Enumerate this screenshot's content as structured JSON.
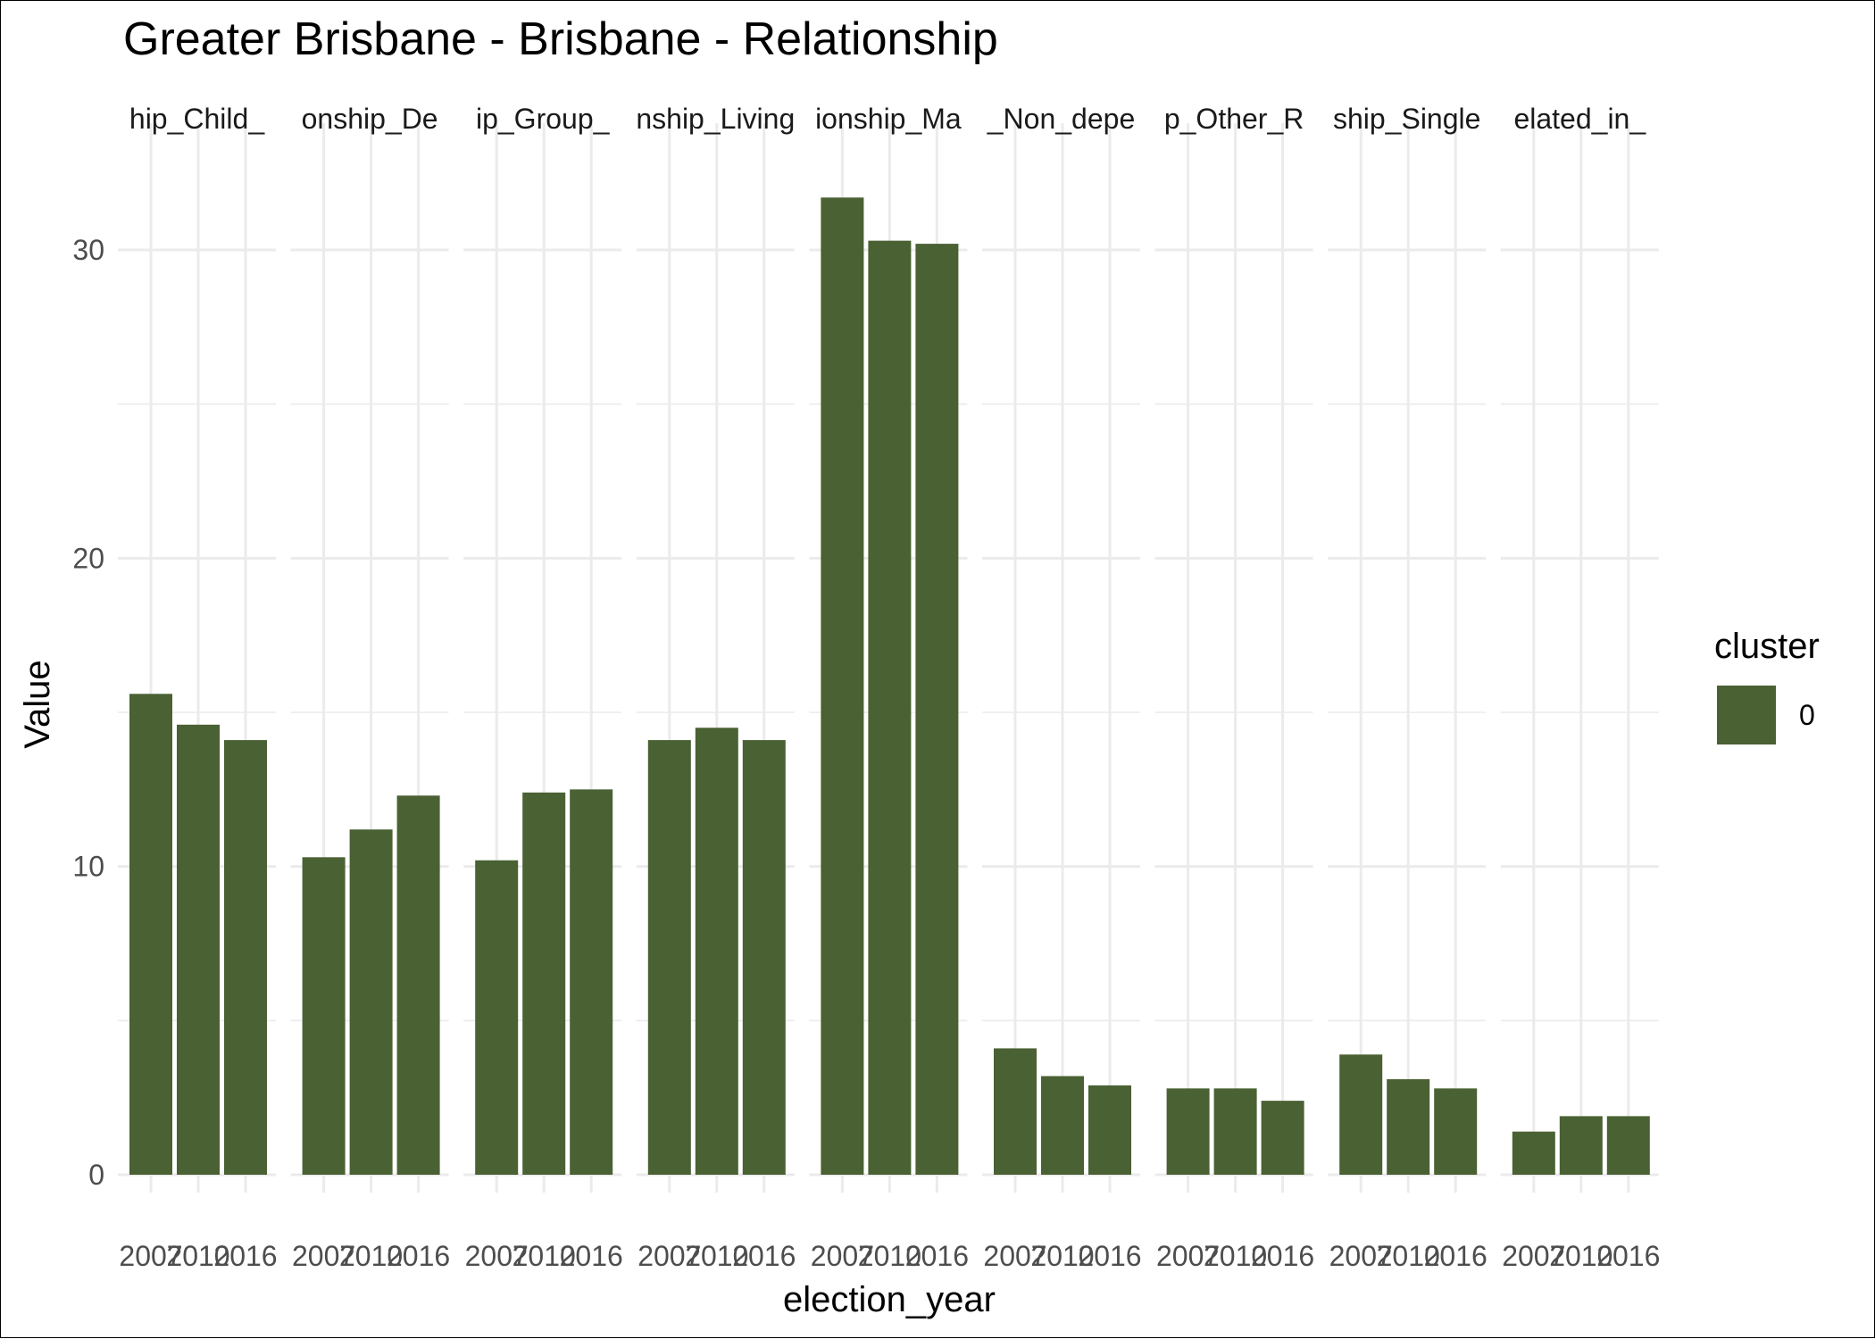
{
  "chart_data": {
    "type": "bar",
    "title": "Greater Brisbane - Brisbane - Relationship",
    "xlabel": "election_year",
    "ylabel": "Value",
    "ylim": [
      0,
      32
    ],
    "y_ticks": [
      0,
      10,
      20,
      30
    ],
    "grid": true,
    "categories": [
      "2007",
      "2010",
      "2016"
    ],
    "facet_labels": [
      "hip_Child_",
      "onship_De",
      "ip_Group_",
      "nship_Living",
      "ionship_Ma",
      "_Non_depe",
      "p_Other_R",
      "ship_Single",
      "elated_in_"
    ],
    "facets": [
      {
        "label": "hip_Child_",
        "values": [
          15.6,
          14.6,
          14.1
        ]
      },
      {
        "label": "onship_De",
        "values": [
          10.3,
          11.2,
          12.3
        ]
      },
      {
        "label": "ip_Group_",
        "values": [
          10.2,
          12.4,
          12.5
        ]
      },
      {
        "label": "nship_Living",
        "values": [
          14.1,
          14.5,
          14.1
        ]
      },
      {
        "label": "ionship_Ma",
        "values": [
          31.7,
          30.3,
          30.2
        ]
      },
      {
        "label": "_Non_depe",
        "values": [
          4.1,
          3.2,
          2.9
        ]
      },
      {
        "label": "p_Other_R",
        "values": [
          2.8,
          2.8,
          2.4
        ]
      },
      {
        "label": "ship_Single",
        "values": [
          3.9,
          3.1,
          2.8
        ]
      },
      {
        "label": "elated_in_",
        "values": [
          1.4,
          1.9,
          1.9
        ]
      }
    ],
    "legend": {
      "title": "cluster",
      "position": "right",
      "entries": [
        {
          "label": "0",
          "color": "#4a6133"
        }
      ]
    },
    "bar_color": "#4a6133"
  }
}
